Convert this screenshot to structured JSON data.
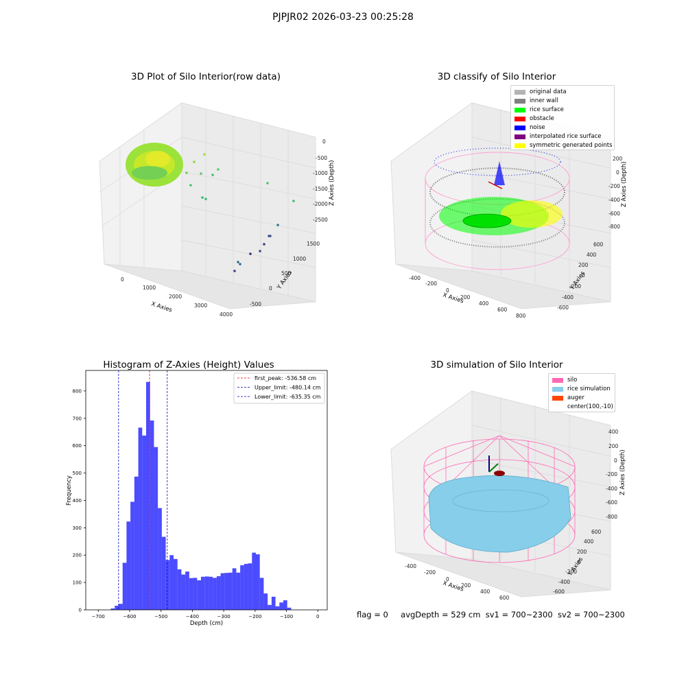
{
  "figure_title": "PJPJR02 2026-03-23 00:25:28",
  "status": {
    "flag": "flag = 0",
    "avg_depth": "avgDepth = 529 cm",
    "sv1": "sv1 = 700~2300",
    "sv2": "sv2 = 700~2300"
  },
  "panels": {
    "raw": {
      "title": "3D Plot of Silo Interior(row data)",
      "xlabel": "X Axies",
      "ylabel": "Y Axies",
      "zlabel": "Z Axies (Depth)",
      "xticks": [
        "0",
        "1000",
        "2000",
        "3000",
        "4000"
      ],
      "yticks": [
        "-500",
        "0",
        "500",
        "1000",
        "1500"
      ],
      "zticks": [
        "0",
        "-500",
        "-1000",
        "-1500",
        "-2000",
        "-2500"
      ]
    },
    "classify": {
      "title": "3D classify of Silo Interior",
      "xlabel": "X Axies",
      "ylabel": "Y Axies",
      "zlabel": "Z Axies (Depth)",
      "xticks": [
        "-400",
        "-200",
        "0",
        "200",
        "400",
        "600",
        "800"
      ],
      "yticks": [
        "-600",
        "-400",
        "-200",
        "0",
        "200",
        "400",
        "600"
      ],
      "zticks": [
        "200",
        "0",
        "-200",
        "-400",
        "-600",
        "-800"
      ],
      "legend": [
        {
          "label": "original data",
          "color": "#b3b3b3"
        },
        {
          "label": "inner wall",
          "color": "#808080"
        },
        {
          "label": "rice surface",
          "color": "#00ff00"
        },
        {
          "label": "obstacle",
          "color": "#ff0000"
        },
        {
          "label": "noise",
          "color": "#0000ff"
        },
        {
          "label": "interpolated rice surface",
          "color": "#800080"
        },
        {
          "label": "symmetric generated points",
          "color": "#ffff00"
        }
      ]
    },
    "simulation": {
      "title": "3D simulation of Silo Interior",
      "xlabel": "X Axies",
      "ylabel": "Y Axies",
      "zlabel": "Z Axies (Depth)",
      "xticks": [
        "-400",
        "-200",
        "0",
        "200",
        "400",
        "600"
      ],
      "yticks": [
        "-600",
        "-400",
        "-200",
        "0",
        "200",
        "400",
        "600"
      ],
      "zticks": [
        "400",
        "200",
        "0",
        "-200",
        "-400",
        "-600",
        "-800"
      ],
      "legend": [
        {
          "label": "silo",
          "color": "#ff69b4"
        },
        {
          "label": "rice simulation",
          "color": "#87ceeb"
        },
        {
          "label": "auger",
          "color": "#ff4500"
        },
        {
          "label": "center(100,-10)",
          "color": ""
        }
      ]
    }
  },
  "chart_data": {
    "type": "bar",
    "title": "Histogram of Z-Axies (Height) Values",
    "xlabel": "Depth (cm)",
    "ylabel": "Frequency",
    "xlim": [
      -740,
      30
    ],
    "ylim": [
      0,
      875
    ],
    "xticks": [
      -700,
      -600,
      -500,
      -400,
      -300,
      -200,
      -100,
      0
    ],
    "yticks": [
      0,
      100,
      200,
      300,
      400,
      500,
      600,
      700,
      800
    ],
    "bar_color": "#0000ff",
    "bin_width": 12.5,
    "bin_starts": [
      -660,
      -647.5,
      -635,
      -622.5,
      -610,
      -597.5,
      -585,
      -572.5,
      -560,
      -547.5,
      -535,
      -522.5,
      -510,
      -497.5,
      -485,
      -472.5,
      -460,
      -447.5,
      -435,
      -422.5,
      -410,
      -397.5,
      -385,
      -372.5,
      -360,
      -347.5,
      -335,
      -322.5,
      -310,
      -297.5,
      -285,
      -272.5,
      -260,
      -247.5,
      -235,
      -222.5,
      -210,
      -197.5,
      -185,
      -172.5,
      -160,
      -147.5,
      -135,
      -122.5,
      -110,
      -97.5,
      -85,
      -72.5,
      -60,
      -47.5,
      -35,
      -22.5,
      -10
    ],
    "values": [
      5,
      15,
      22,
      172,
      323,
      395,
      487,
      666,
      637,
      833,
      692,
      595,
      372,
      267,
      182,
      200,
      186,
      148,
      129,
      140,
      116,
      117,
      108,
      121,
      122,
      121,
      117,
      123,
      134,
      135,
      136,
      152,
      136,
      163,
      168,
      170,
      209,
      203,
      117,
      60,
      18,
      48,
      13,
      27,
      35,
      8,
      0,
      0,
      0,
      0,
      0,
      0,
      0
    ],
    "vlines": [
      {
        "x": -536.58,
        "color": "#ff0000",
        "label": "first_peak: -536.58 cm"
      },
      {
        "x": -480.14,
        "color": "#0000cc",
        "label": "Upper_limit: -480.14 cm"
      },
      {
        "x": -635.35,
        "color": "#0000cc",
        "label": "Lower_limit: -635.35 cm"
      }
    ],
    "legend_position": "upper right"
  }
}
